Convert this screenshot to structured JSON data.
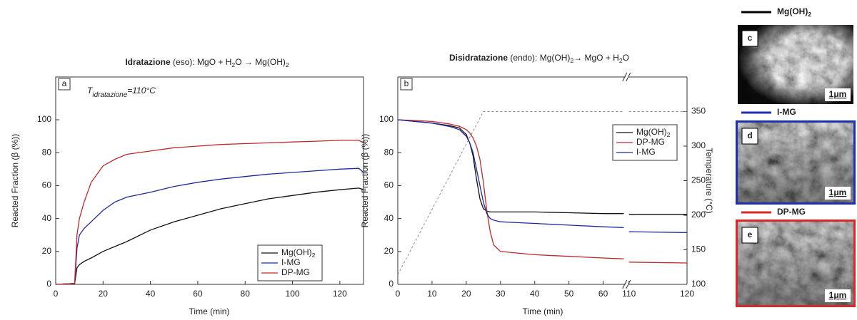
{
  "chart_data": [
    {
      "type": "line",
      "title": "Idratazione (eso): MgO + H2O → Mg(OH)2",
      "panel": "a",
      "annotation": {
        "symbol": "T",
        "subscript": "idratazione",
        "text": "=110°C"
      },
      "x_label": "Time (min)",
      "y_label": "Reacted Fraction (β (%))",
      "x": [
        0,
        8,
        9,
        10,
        12,
        15,
        20,
        25,
        30,
        40,
        50,
        60,
        70,
        80,
        90,
        100,
        110,
        120,
        128,
        130
      ],
      "series": [
        {
          "name": "Mg(OH)2",
          "color": "#111111",
          "values": [
            0,
            0.5,
            10,
            12,
            14,
            16,
            20,
            23,
            26,
            33,
            38,
            42,
            46,
            49,
            52,
            54,
            56,
            57.5,
            58.5,
            57.5
          ]
        },
        {
          "name": "I-MG",
          "color": "#1c2a9e",
          "values": [
            0,
            0.5,
            22,
            30,
            34,
            38,
            45,
            50,
            53,
            56,
            59.5,
            62,
            64,
            65.5,
            67,
            68,
            69,
            70,
            70.5,
            68
          ]
        },
        {
          "name": "DP-MG",
          "color": "#c0282d",
          "values": [
            0,
            0.5,
            30,
            40,
            50,
            62,
            72,
            76,
            79,
            81,
            83,
            84,
            85,
            85.5,
            86,
            86.5,
            87,
            87.5,
            87.5,
            86
          ]
        }
      ],
      "xlim": [
        0,
        130
      ],
      "ylim": [
        0,
        126
      ],
      "xticks": [
        0,
        20,
        40,
        60,
        80,
        100,
        120
      ],
      "yticks": [
        0,
        20,
        40,
        60,
        80,
        100
      ],
      "legend": "lower right"
    },
    {
      "type": "line",
      "title": "Disidratazione (endo): Mg(OH)2→ MgO + H2O",
      "panel": "b",
      "x_label": "Time (min)",
      "y_label": "Reacted Fraction (β (%))",
      "y2_label": "Temperature (°C)",
      "axis_break": [
        66.5,
        110
      ],
      "series": [
        {
          "name": "Mg(OH)2",
          "color": "#111111",
          "x": [
            0,
            5,
            10,
            15,
            18,
            20,
            21,
            22,
            23,
            24,
            25,
            26,
            27,
            28,
            30,
            35,
            40,
            50,
            60,
            66,
            110,
            120
          ],
          "values": [
            100,
            99,
            98,
            96.5,
            95,
            91,
            86,
            78,
            64,
            52,
            46,
            44.5,
            44,
            44,
            44,
            44,
            44,
            43.5,
            43,
            43,
            42.5,
            42.5
          ]
        },
        {
          "name": "DP-MG",
          "color": "#c0282d",
          "x": [
            0,
            5,
            10,
            15,
            18,
            20,
            21,
            22,
            23,
            24,
            25,
            26,
            27,
            28,
            30,
            35,
            40,
            50,
            60,
            66,
            110,
            120
          ],
          "values": [
            100,
            99.5,
            99,
            97.5,
            96,
            94,
            92,
            89,
            84,
            76,
            62,
            45,
            32,
            24,
            20,
            19,
            18,
            17,
            16,
            15.5,
            13.5,
            13
          ]
        },
        {
          "name": "I-MG",
          "color": "#1c2a9e",
          "x": [
            0,
            5,
            10,
            15,
            18,
            20,
            21,
            22,
            23,
            24,
            25,
            26,
            27,
            28,
            30,
            35,
            40,
            50,
            60,
            66,
            110,
            120
          ],
          "values": [
            100,
            99,
            98,
            96,
            94,
            90,
            86,
            80,
            70,
            60,
            50,
            43,
            40,
            39,
            38,
            37.5,
            37,
            36,
            35,
            34.5,
            32,
            31.5
          ]
        },
        {
          "color": "#888888",
          "dashed": true,
          "axis": "y2",
          "x": [
            0,
            25,
            66,
            110,
            120
          ],
          "values": [
            114,
            350,
            350,
            350,
            350
          ]
        }
      ],
      "xlim": [
        0,
        120
      ],
      "ylim": [
        0,
        126
      ],
      "y2lim": [
        100,
        400
      ],
      "xticks": [
        0,
        10,
        20,
        30,
        40,
        50,
        60,
        110,
        120
      ],
      "yticks": [
        0,
        20,
        40,
        60,
        80,
        100
      ],
      "y2ticks": [
        100,
        150,
        200,
        250,
        300,
        350
      ],
      "legend": "upper right"
    }
  ],
  "sem_panels": [
    {
      "title": "Mg(OH)2",
      "color": "#000000",
      "letter": "c",
      "scale": "1μm"
    },
    {
      "title": "I-MG",
      "color": "#1f2fb0",
      "letter": "d",
      "scale": "1μm"
    },
    {
      "title": "DP-MG",
      "color": "#d42a2a",
      "letter": "e",
      "scale": "1μm"
    }
  ]
}
